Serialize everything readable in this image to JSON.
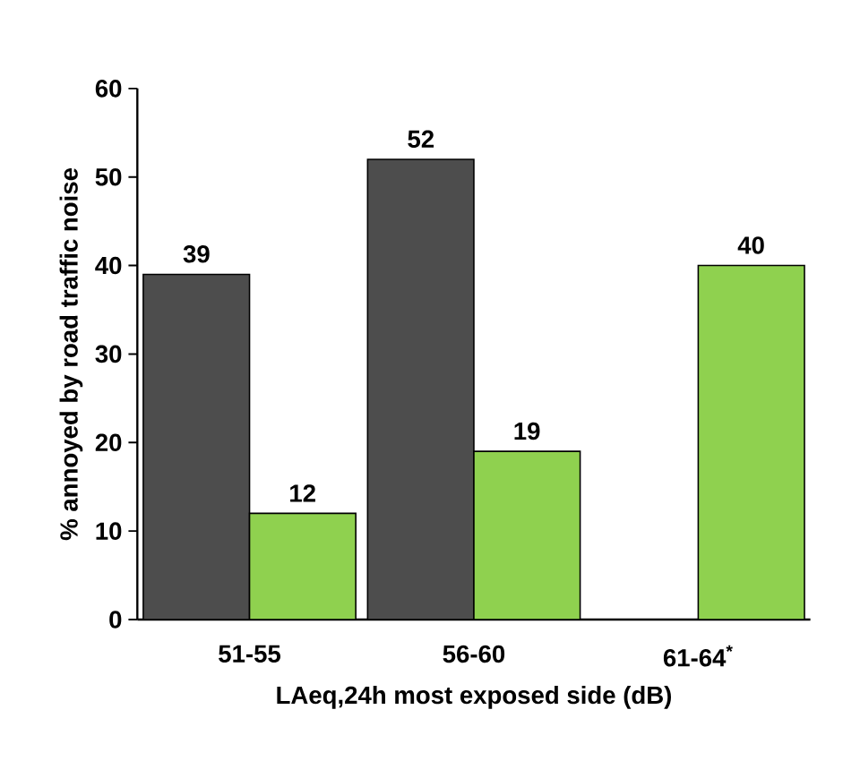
{
  "chart_data": {
    "type": "bar",
    "xlabel": "LAeq,24h most exposed side (dB)",
    "ylabel": "% annoyed by road traffic noise",
    "categories": [
      "51-55",
      "56-60",
      "61-64$^{*}$"
    ],
    "series": [
      {
        "color": "#4d4d4d",
        "values": [
          39,
          52,
          null
        ]
      },
      {
        "color": "#8fd14f",
        "values": [
          12,
          19,
          40
        ]
      }
    ],
    "ylim": [
      0,
      60
    ],
    "yticks": [
      0,
      10,
      20,
      30,
      40,
      50,
      60
    ],
    "data_labels": true
  }
}
